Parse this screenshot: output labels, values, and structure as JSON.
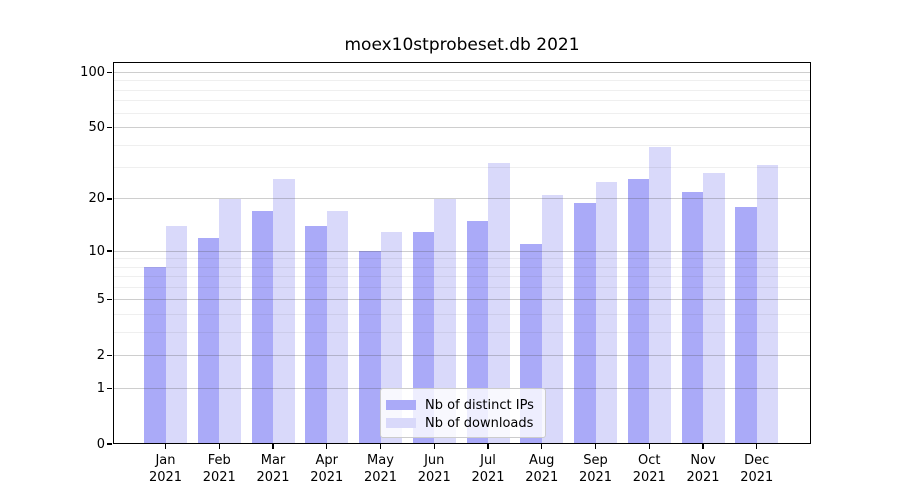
{
  "figure": {
    "title": "moex10stprobeset.db 2021"
  },
  "chart_data": {
    "type": "bar",
    "title": "moex10stprobeset.db 2021",
    "categories": [
      "Jan",
      "Feb",
      "Mar",
      "Apr",
      "May",
      "Jun",
      "Jul",
      "Aug",
      "Sep",
      "Oct",
      "Nov",
      "Dec"
    ],
    "year": "2021",
    "series": [
      {
        "name": "Nb of distinct IPs",
        "color": "#aaaaf8",
        "values": [
          8,
          12,
          17,
          14,
          10,
          13,
          15,
          11,
          19,
          26,
          22,
          18
        ]
      },
      {
        "name": "Nb of downloads",
        "color": "#d9d9fa",
        "values": [
          14,
          20,
          26,
          17,
          13,
          20,
          32,
          21,
          25,
          39,
          28,
          31
        ]
      }
    ],
    "xlabel": "",
    "ylabel": "",
    "yscale": "log1p",
    "ylim": [
      0,
      115
    ],
    "yticks_major": [
      0,
      1,
      2,
      5,
      10,
      20,
      50,
      100
    ],
    "yticks_minor": [
      3,
      4,
      6,
      7,
      8,
      9,
      30,
      40,
      60,
      70,
      80,
      90
    ],
    "grid": true,
    "legend_position": "lower center"
  }
}
